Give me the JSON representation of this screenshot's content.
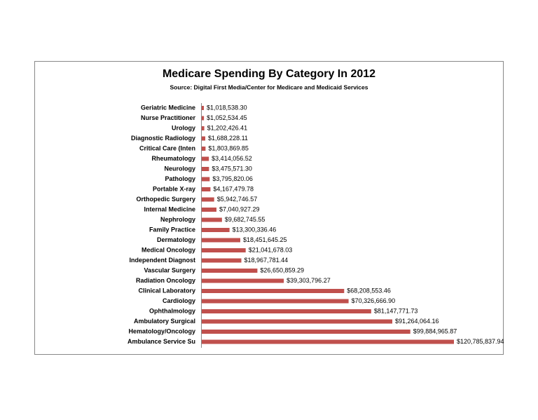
{
  "chart_data": {
    "type": "bar",
    "title": "Medicare Spending By Category In 2012",
    "subtitle": "Source: Digital First Media/Center for Medicare and Medicaid Services",
    "color": "#c0504d",
    "categories": [
      "Geriatric Medicine",
      "Nurse Practitioner",
      "Urology",
      "Diagnostic Radiology",
      "Critical Care (Inten",
      "Rheumatology",
      "Neurology",
      "Pathology",
      "Portable X-ray",
      "Orthopedic Surgery",
      "Internal Medicine",
      "Nephrology",
      "Family Practice",
      "Dermatology",
      "Medical Oncology",
      "Independent Diagnost",
      "Vascular Surgery",
      "Radiation Oncology",
      "Clinical Laboratory",
      "Cardiology",
      "Ophthalmology",
      "Ambulatory Surgical",
      "Hematology/Oncology",
      "Ambulance Service Su"
    ],
    "values": [
      1018538.3,
      1052534.45,
      1202426.41,
      1688228.11,
      1803869.85,
      3414056.52,
      3475571.3,
      3795820.06,
      4167479.78,
      5942746.57,
      7040927.29,
      9682745.55,
      13300336.46,
      18451645.25,
      21041678.03,
      18967781.44,
      26650859.29,
      39303796.27,
      68208553.46,
      70326666.9,
      81147771.73,
      91264064.16,
      99884965.87,
      120785837.94
    ],
    "value_labels": [
      "$1,018,538.30",
      "$1,052,534.45",
      "$1,202,426.41",
      "$1,688,228.11",
      "$1,803,869.85",
      "$3,414,056.52",
      "$3,475,571.30",
      "$3,795,820.06",
      "$4,167,479.78",
      "$5,942,746.57",
      "$7,040,927.29",
      "$9,682,745.55",
      "$13,300,336.46",
      "$18,451,645.25",
      "$21,041,678.03",
      "$18,967,781.44",
      "$26,650,859.29",
      "$39,303,796.27",
      "$68,208,553.46",
      "$70,326,666.90",
      "$81,147,771.73",
      "$91,264,064.16",
      "$99,884,965.87",
      "$120,785,837.94"
    ]
  }
}
